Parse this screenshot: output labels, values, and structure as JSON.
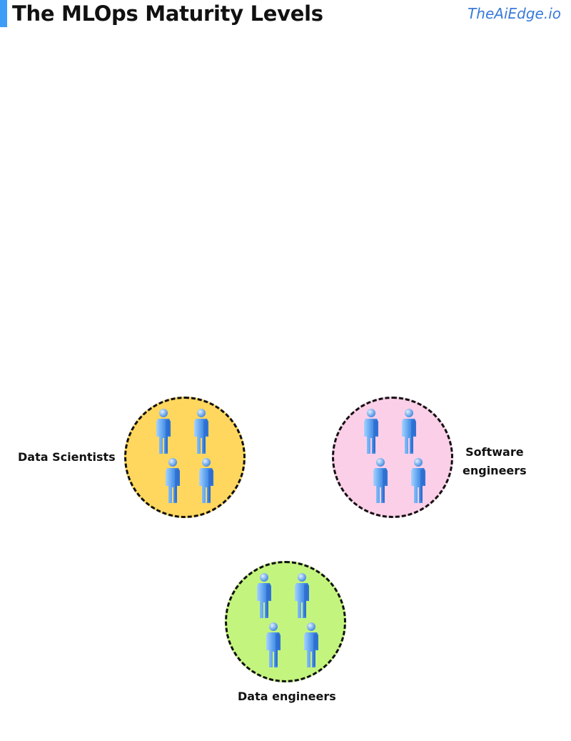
{
  "header": {
    "title": "The MLOps Maturity Levels",
    "brand": "TheAiEdge.io"
  },
  "colors": {
    "accent": "#3d9cf5",
    "brand_text": "#3a7ad9",
    "data_scientists_fill": "#ffd75e",
    "software_engineers_fill": "#fbcfe8",
    "data_engineers_fill": "#c3f57e",
    "person_light": "#a6d3ff",
    "person_dark": "#2c6fd4"
  },
  "groups": {
    "data_scientists": {
      "label": "Data Scientists",
      "icon": "person-icon",
      "count": 4
    },
    "software_engineers": {
      "label_line1": "Software",
      "label_line2": "engineers",
      "icon": "person-icon",
      "count": 4
    },
    "data_engineers": {
      "label": "Data engineers",
      "icon": "person-icon",
      "count": 4
    }
  }
}
